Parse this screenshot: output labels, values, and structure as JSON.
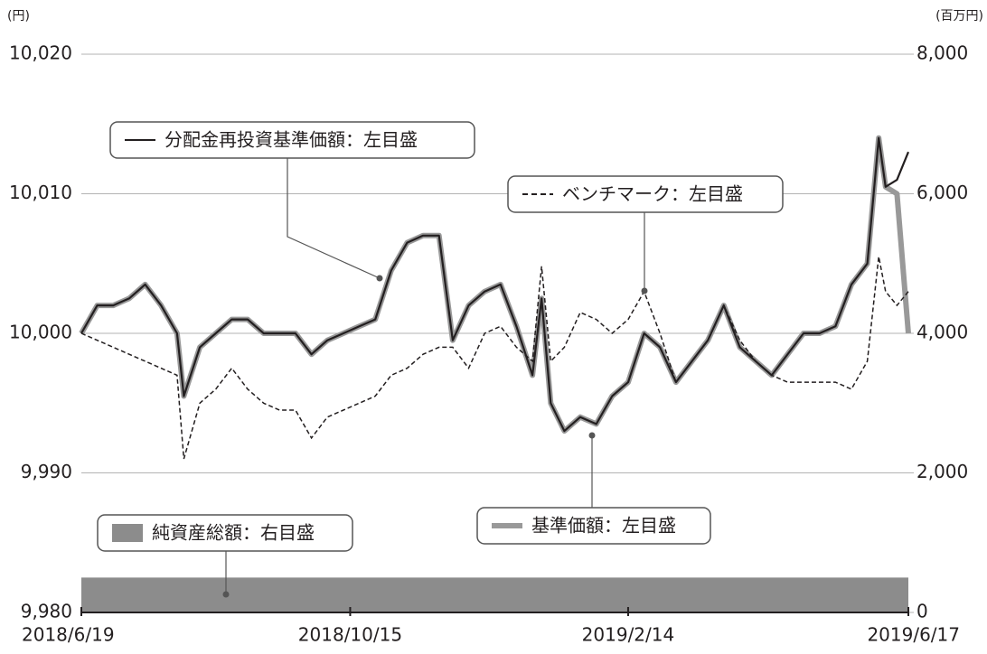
{
  "chart_data": {
    "type": "line",
    "y_label": "(円)",
    "y2_label": "(百万円)",
    "x": [
      "2018/6/19",
      "2018/6/26",
      "2018/7/3",
      "2018/7/10",
      "2018/7/17",
      "2018/7/24",
      "2018/7/31",
      "2018/8/3",
      "2018/8/10",
      "2018/8/17",
      "2018/8/24",
      "2018/8/31",
      "2018/9/7",
      "2018/9/14",
      "2018/9/21",
      "2018/9/28",
      "2018/10/5",
      "2018/10/12",
      "2018/10/19",
      "2018/10/26",
      "2018/11/2",
      "2018/11/9",
      "2018/11/16",
      "2018/11/23",
      "2018/11/29",
      "2018/12/6",
      "2018/12/13",
      "2018/12/20",
      "2018/12/27",
      "2019/1/3",
      "2019/1/7",
      "2019/1/11",
      "2019/1/17",
      "2019/1/24",
      "2019/1/31",
      "2019/2/7",
      "2019/2/14",
      "2019/2/21",
      "2019/2/28",
      "2019/3/7",
      "2019/3/14",
      "2019/3/21",
      "2019/3/28",
      "2019/4/4",
      "2019/4/11",
      "2019/4/18",
      "2019/4/25",
      "2019/5/2",
      "2019/5/9",
      "2019/5/16",
      "2019/5/23",
      "2019/5/30",
      "2019/6/4",
      "2019/6/7",
      "2019/6/12",
      "2019/6/17"
    ],
    "series": [
      {
        "name": "純資産総額：右目盛",
        "type": "area",
        "axis": "y2",
        "color": "#8c8c8c",
        "values": [
          500,
          500,
          500,
          500,
          500,
          500,
          500,
          500,
          500,
          500,
          500,
          500,
          500,
          500,
          500,
          500,
          500,
          500,
          500,
          500,
          500,
          500,
          500,
          500,
          500,
          500,
          500,
          500,
          500,
          500,
          500,
          500,
          500,
          500,
          500,
          500,
          500,
          500,
          500,
          500,
          500,
          500,
          500,
          500,
          500,
          500,
          500,
          500,
          500,
          500,
          500,
          500,
          500,
          500,
          500,
          500
        ]
      },
      {
        "name": "基準価額：左目盛",
        "type": "line",
        "color": "#999999",
        "values": [
          10000,
          10002,
          10002,
          10002.5,
          10003.5,
          10002,
          10000,
          9995.5,
          9999,
          10000,
          10001,
          10001,
          10000,
          10000,
          10000,
          9998.5,
          9999.5,
          10000,
          10000.5,
          10001,
          10004.5,
          10006.5,
          10007,
          10007,
          9999.5,
          10002,
          10003,
          10003.5,
          10000.5,
          9997,
          10002.5,
          9995,
          9993,
          9994,
          9993.5,
          9995.5,
          9996.5,
          10000,
          9999,
          9996.5,
          9998,
          9999.5,
          10002,
          9999,
          9998,
          9997,
          9998.5,
          10000,
          10000,
          10000.5,
          10003.5,
          10005,
          10014,
          10010.5,
          10010,
          10000
        ]
      },
      {
        "name": "分配金再投資基準価額：左目盛",
        "type": "line",
        "color": "#231f20",
        "values": [
          10000,
          10002,
          10002,
          10002.5,
          10003.5,
          10002,
          10000,
          9995.5,
          9999,
          10000,
          10001,
          10001,
          10000,
          10000,
          10000,
          9998.5,
          9999.5,
          10000,
          10000.5,
          10001,
          10004.5,
          10006.5,
          10007,
          10007,
          9999.5,
          10002,
          10003,
          10003.5,
          10000.5,
          9997,
          10002.5,
          9995,
          9993,
          9994,
          9993.5,
          9995.5,
          9996.5,
          10000,
          9999,
          9996.5,
          9998,
          9999.5,
          10002,
          9999,
          9998,
          9997,
          9998.5,
          10000,
          10000,
          10000.5,
          10003.5,
          10005,
          10014,
          10010.5,
          10011,
          10013
        ]
      },
      {
        "name": "ベンチマーク：左目盛",
        "type": "dashed",
        "color": "#231f20",
        "values": [
          10000,
          9999.5,
          9999,
          9998.5,
          9998,
          9997.5,
          9997,
          9991,
          9995,
          9996,
          9997.5,
          9996,
          9995,
          9994.5,
          9994.5,
          9992.5,
          9994,
          9994.5,
          9995,
          9995.5,
          9997,
          9997.5,
          9998.5,
          9999,
          9999,
          9997.5,
          10000,
          10000.5,
          9999,
          9998,
          10004.8,
          9998,
          9999,
          10001.5,
          10001,
          10000,
          10001,
          10003,
          10000,
          9996.5,
          9998,
          9999.5,
          10002,
          9999.5,
          9998,
          9997,
          9996.5,
          9996.5,
          9996.5,
          9996.5,
          9996,
          9998,
          10005.5,
          10003,
          10002,
          10003
        ]
      }
    ],
    "xlim": [
      "2018/6/19",
      "2019/6/17"
    ],
    "xticks": [
      "2018/6/19",
      "2018/10/15",
      "2019/2/14",
      "2019/6/17"
    ],
    "ylim": [
      9980,
      10020
    ],
    "yticks": [
      {
        "value": 9980,
        "label": "9,980"
      },
      {
        "value": 9990,
        "label": "9,990"
      },
      {
        "value": 10000,
        "label": "10,000"
      },
      {
        "value": 10010,
        "label": "10,010"
      },
      {
        "value": 10020,
        "label": "10,020"
      }
    ],
    "y2lim": [
      0,
      8000
    ],
    "y2ticks": [
      0,
      {
        "value": 2000,
        "label": "2,000"
      },
      {
        "value": 4000,
        "label": "4,000"
      },
      {
        "value": 6000,
        "label": "6,000"
      },
      {
        "value": 8000,
        "label": "8,000"
      }
    ],
    "grid": true
  }
}
